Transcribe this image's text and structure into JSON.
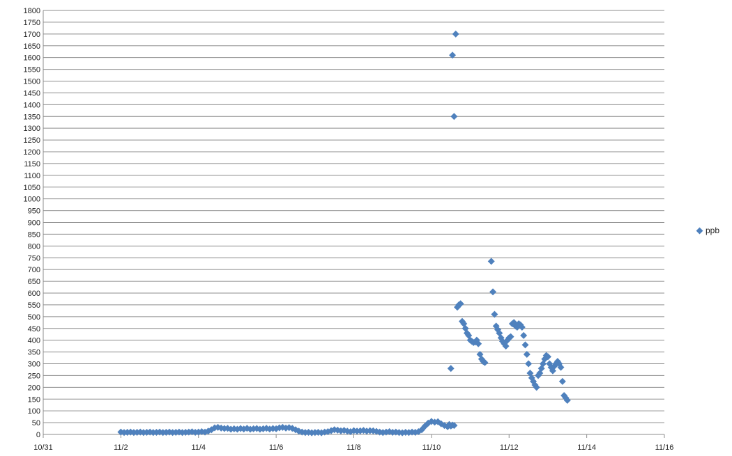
{
  "chart_data": {
    "type": "scatter",
    "title": "",
    "xlabel": "",
    "ylabel": "",
    "xlim": [
      "10/31",
      "11/16"
    ],
    "ylim": [
      0,
      1800
    ],
    "y_ticks": [
      0,
      50,
      100,
      150,
      200,
      250,
      300,
      350,
      400,
      450,
      500,
      550,
      600,
      650,
      700,
      750,
      800,
      850,
      900,
      950,
      1000,
      1050,
      1100,
      1150,
      1200,
      1250,
      1300,
      1350,
      1400,
      1450,
      1500,
      1550,
      1600,
      1650,
      1700,
      1750,
      1800
    ],
    "x_ticks": [
      "10/31",
      "11/2",
      "11/4",
      "11/6",
      "11/8",
      "11/10",
      "11/12",
      "11/14",
      "11/16"
    ],
    "grid": "horizontal",
    "legend_position": "right",
    "marker_color": "#4f81bd",
    "series": [
      {
        "name": "ppb",
        "points": [
          [
            "11/2 00:00",
            10
          ],
          [
            "11/2 02:00",
            8
          ],
          [
            "11/2 04:00",
            9
          ],
          [
            "11/2 06:00",
            10
          ],
          [
            "11/2 08:00",
            8
          ],
          [
            "11/2 10:00",
            9
          ],
          [
            "11/2 12:00",
            10
          ],
          [
            "11/2 14:00",
            8
          ],
          [
            "11/2 16:00",
            9
          ],
          [
            "11/2 18:00",
            10
          ],
          [
            "11/2 20:00",
            8
          ],
          [
            "11/2 22:00",
            9
          ],
          [
            "11/3 00:00",
            10
          ],
          [
            "11/3 02:00",
            8
          ],
          [
            "11/3 04:00",
            9
          ],
          [
            "11/3 06:00",
            10
          ],
          [
            "11/3 08:00",
            8
          ],
          [
            "11/3 10:00",
            9
          ],
          [
            "11/3 12:00",
            10
          ],
          [
            "11/3 14:00",
            8
          ],
          [
            "11/3 16:00",
            9
          ],
          [
            "11/3 18:00",
            10
          ],
          [
            "11/3 20:00",
            11
          ],
          [
            "11/3 22:00",
            9
          ],
          [
            "11/4 00:00",
            10
          ],
          [
            "11/4 02:00",
            12
          ],
          [
            "11/4 04:00",
            10
          ],
          [
            "11/4 06:00",
            14
          ],
          [
            "11/4 08:00",
            20
          ],
          [
            "11/4 10:00",
            28
          ],
          [
            "11/4 12:00",
            30
          ],
          [
            "11/4 14:00",
            27
          ],
          [
            "11/4 16:00",
            25
          ],
          [
            "11/4 18:00",
            26
          ],
          [
            "11/4 20:00",
            22
          ],
          [
            "11/4 22:00",
            24
          ],
          [
            "11/5 00:00",
            22
          ],
          [
            "11/5 02:00",
            25
          ],
          [
            "11/5 04:00",
            23
          ],
          [
            "11/5 06:00",
            26
          ],
          [
            "11/5 08:00",
            22
          ],
          [
            "11/5 10:00",
            24
          ],
          [
            "11/5 12:00",
            25
          ],
          [
            "11/5 14:00",
            22
          ],
          [
            "11/5 16:00",
            24
          ],
          [
            "11/5 18:00",
            26
          ],
          [
            "11/5 20:00",
            23
          ],
          [
            "11/5 22:00",
            25
          ],
          [
            "11/6 00:00",
            24
          ],
          [
            "11/6 02:00",
            28
          ],
          [
            "11/6 04:00",
            30
          ],
          [
            "11/6 06:00",
            27
          ],
          [
            "11/6 08:00",
            29
          ],
          [
            "11/6 10:00",
            26
          ],
          [
            "11/6 12:00",
            20
          ],
          [
            "11/6 14:00",
            14
          ],
          [
            "11/6 16:00",
            10
          ],
          [
            "11/6 18:00",
            8
          ],
          [
            "11/6 20:00",
            9
          ],
          [
            "11/6 22:00",
            7
          ],
          [
            "11/7 00:00",
            8
          ],
          [
            "11/7 02:00",
            9
          ],
          [
            "11/7 04:00",
            7
          ],
          [
            "11/7 06:00",
            10
          ],
          [
            "11/7 08:00",
            12
          ],
          [
            "11/7 10:00",
            16
          ],
          [
            "11/7 12:00",
            20
          ],
          [
            "11/7 14:00",
            18
          ],
          [
            "11/7 16:00",
            15
          ],
          [
            "11/7 18:00",
            17
          ],
          [
            "11/7 20:00",
            14
          ],
          [
            "11/7 22:00",
            12
          ],
          [
            "11/8 00:00",
            16
          ],
          [
            "11/8 02:00",
            14
          ],
          [
            "11/8 04:00",
            15
          ],
          [
            "11/8 06:00",
            17
          ],
          [
            "11/8 08:00",
            14
          ],
          [
            "11/8 10:00",
            16
          ],
          [
            "11/8 12:00",
            15
          ],
          [
            "11/8 14:00",
            13
          ],
          [
            "11/8 16:00",
            10
          ],
          [
            "11/8 18:00",
            8
          ],
          [
            "11/8 20:00",
            10
          ],
          [
            "11/8 22:00",
            12
          ],
          [
            "11/9 00:00",
            9
          ],
          [
            "11/9 02:00",
            10
          ],
          [
            "11/9 04:00",
            8
          ],
          [
            "11/9 06:00",
            7
          ],
          [
            "11/9 08:00",
            9
          ],
          [
            "11/9 10:00",
            8
          ],
          [
            "11/9 12:00",
            10
          ],
          [
            "11/9 14:00",
            9
          ],
          [
            "11/9 16:00",
            12
          ],
          [
            "11/9 18:00",
            20
          ],
          [
            "11/9 20:00",
            35
          ],
          [
            "11/9 22:00",
            48
          ],
          [
            "11/10 00:00",
            55
          ],
          [
            "11/10 02:00",
            52
          ],
          [
            "11/10 04:00",
            54
          ],
          [
            "11/10 06:00",
            45
          ],
          [
            "11/10 08:00",
            38
          ],
          [
            "11/10 10:00",
            33
          ],
          [
            "11/10 11:00",
            42
          ],
          [
            "11/10 12:00",
            36
          ],
          [
            "11/10 13:00",
            40
          ],
          [
            "11/10 14:00",
            38
          ],
          [
            "11/10 12:00",
            280
          ],
          [
            "11/10 13:00",
            1610
          ],
          [
            "11/10 14:00",
            1350
          ],
          [
            "11/10 15:00",
            1700
          ],
          [
            "11/10 16:00",
            540
          ],
          [
            "11/10 17:00",
            550
          ],
          [
            "11/10 18:00",
            555
          ],
          [
            "11/10 19:00",
            480
          ],
          [
            "11/10 20:00",
            470
          ],
          [
            "11/10 21:00",
            450
          ],
          [
            "11/10 22:00",
            430
          ],
          [
            "11/10 23:00",
            420
          ],
          [
            "11/11 00:00",
            400
          ],
          [
            "11/11 01:00",
            395
          ],
          [
            "11/11 02:00",
            390
          ],
          [
            "11/11 03:00",
            392
          ],
          [
            "11/11 04:00",
            400
          ],
          [
            "11/11 05:00",
            385
          ],
          [
            "11/11 06:00",
            340
          ],
          [
            "11/11 07:00",
            320
          ],
          [
            "11/11 08:00",
            310
          ],
          [
            "11/11 09:00",
            305
          ],
          [
            "11/11 13:00",
            735
          ],
          [
            "11/11 14:00",
            605
          ],
          [
            "11/11 15:00",
            510
          ],
          [
            "11/11 16:00",
            460
          ],
          [
            "11/11 17:00",
            445
          ],
          [
            "11/11 18:00",
            430
          ],
          [
            "11/11 19:00",
            410
          ],
          [
            "11/11 20:00",
            395
          ],
          [
            "11/11 21:00",
            385
          ],
          [
            "11/11 22:00",
            375
          ],
          [
            "11/11 23:00",
            400
          ],
          [
            "11/12 00:00",
            410
          ],
          [
            "11/12 01:00",
            415
          ],
          [
            "11/12 02:00",
            470
          ],
          [
            "11/12 03:00",
            475
          ],
          [
            "11/12 04:00",
            460
          ],
          [
            "11/12 05:00",
            455
          ],
          [
            "11/12 06:00",
            470
          ],
          [
            "11/12 07:00",
            465
          ],
          [
            "11/12 08:00",
            455
          ],
          [
            "11/12 09:00",
            420
          ],
          [
            "11/12 10:00",
            380
          ],
          [
            "11/12 11:00",
            340
          ],
          [
            "11/12 12:00",
            300
          ],
          [
            "11/12 13:00",
            260
          ],
          [
            "11/12 14:00",
            240
          ],
          [
            "11/12 15:00",
            225
          ],
          [
            "11/12 16:00",
            210
          ],
          [
            "11/12 17:00",
            200
          ],
          [
            "11/12 18:00",
            250
          ],
          [
            "11/12 19:00",
            260
          ],
          [
            "11/12 20:00",
            280
          ],
          [
            "11/12 21:00",
            300
          ],
          [
            "11/12 22:00",
            320
          ],
          [
            "11/12 23:00",
            335
          ],
          [
            "11/13 00:00",
            330
          ],
          [
            "11/13 01:00",
            300
          ],
          [
            "11/13 02:00",
            285
          ],
          [
            "11/13 03:00",
            270
          ],
          [
            "11/13 04:00",
            290
          ],
          [
            "11/13 05:00",
            300
          ],
          [
            "11/13 06:00",
            310
          ],
          [
            "11/13 07:00",
            300
          ],
          [
            "11/13 08:00",
            285
          ],
          [
            "11/13 09:00",
            225
          ],
          [
            "11/13 10:00",
            165
          ],
          [
            "11/13 11:00",
            155
          ],
          [
            "11/13 12:00",
            145
          ]
        ]
      }
    ]
  }
}
